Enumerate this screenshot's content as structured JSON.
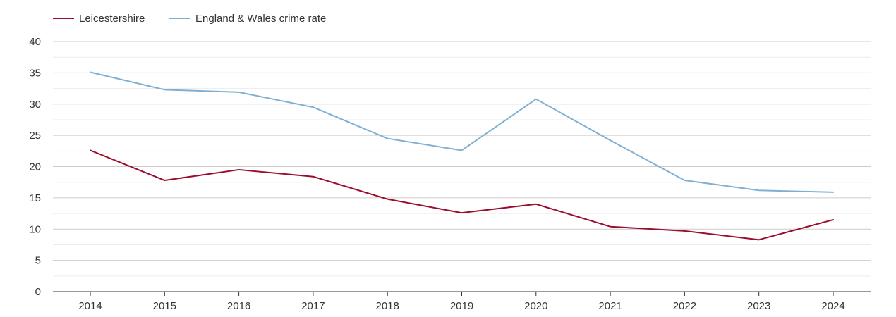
{
  "chart_data": {
    "type": "line",
    "title": "",
    "xlabel": "",
    "ylabel": "",
    "categories": [
      "2014",
      "2015",
      "2016",
      "2017",
      "2018",
      "2019",
      "2020",
      "2021",
      "2022",
      "2023",
      "2024"
    ],
    "ylim": [
      0,
      40
    ],
    "yticks": [
      0,
      5,
      10,
      15,
      20,
      25,
      30,
      35,
      40
    ],
    "grid": true,
    "legend_position": "top-left",
    "series": [
      {
        "name": "Leicestershire",
        "color": "#9b0d2e",
        "values": [
          22.6,
          17.8,
          19.5,
          18.4,
          14.8,
          12.6,
          14.0,
          10.4,
          9.7,
          8.3,
          11.5
        ]
      },
      {
        "name": "England & Wales crime rate",
        "color": "#7fb0d3",
        "values": [
          35.1,
          32.3,
          31.9,
          29.5,
          24.5,
          22.6,
          30.8,
          24.2,
          17.8,
          16.2,
          15.9
        ]
      }
    ]
  }
}
